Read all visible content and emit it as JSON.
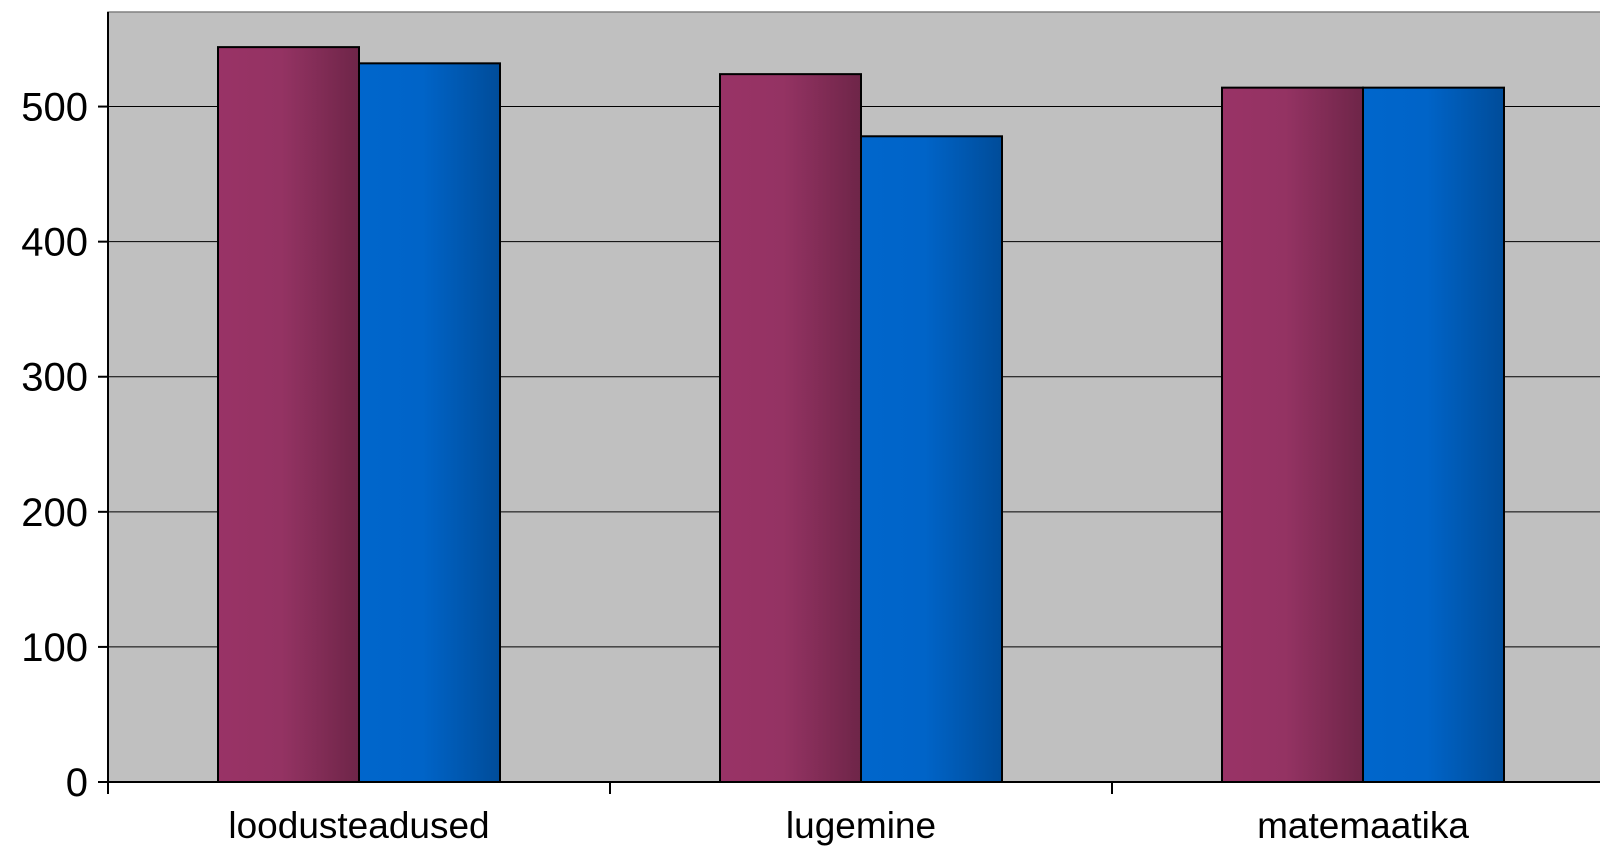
{
  "chart_data": {
    "type": "bar",
    "categories": [
      "loodusteadused",
      "lugemine",
      "matemaatika"
    ],
    "series": [
      {
        "values": [
          544,
          524,
          514
        ],
        "color": "#993366"
      },
      {
        "values": [
          532,
          478,
          514
        ],
        "color": "#0066CC"
      }
    ],
    "ylim": [
      0,
      570
    ],
    "yticks": [
      "0",
      "100",
      "200",
      "300",
      "400",
      "500"
    ],
    "grid": true,
    "legend": "none",
    "plot_background": "#C0C0C0"
  }
}
